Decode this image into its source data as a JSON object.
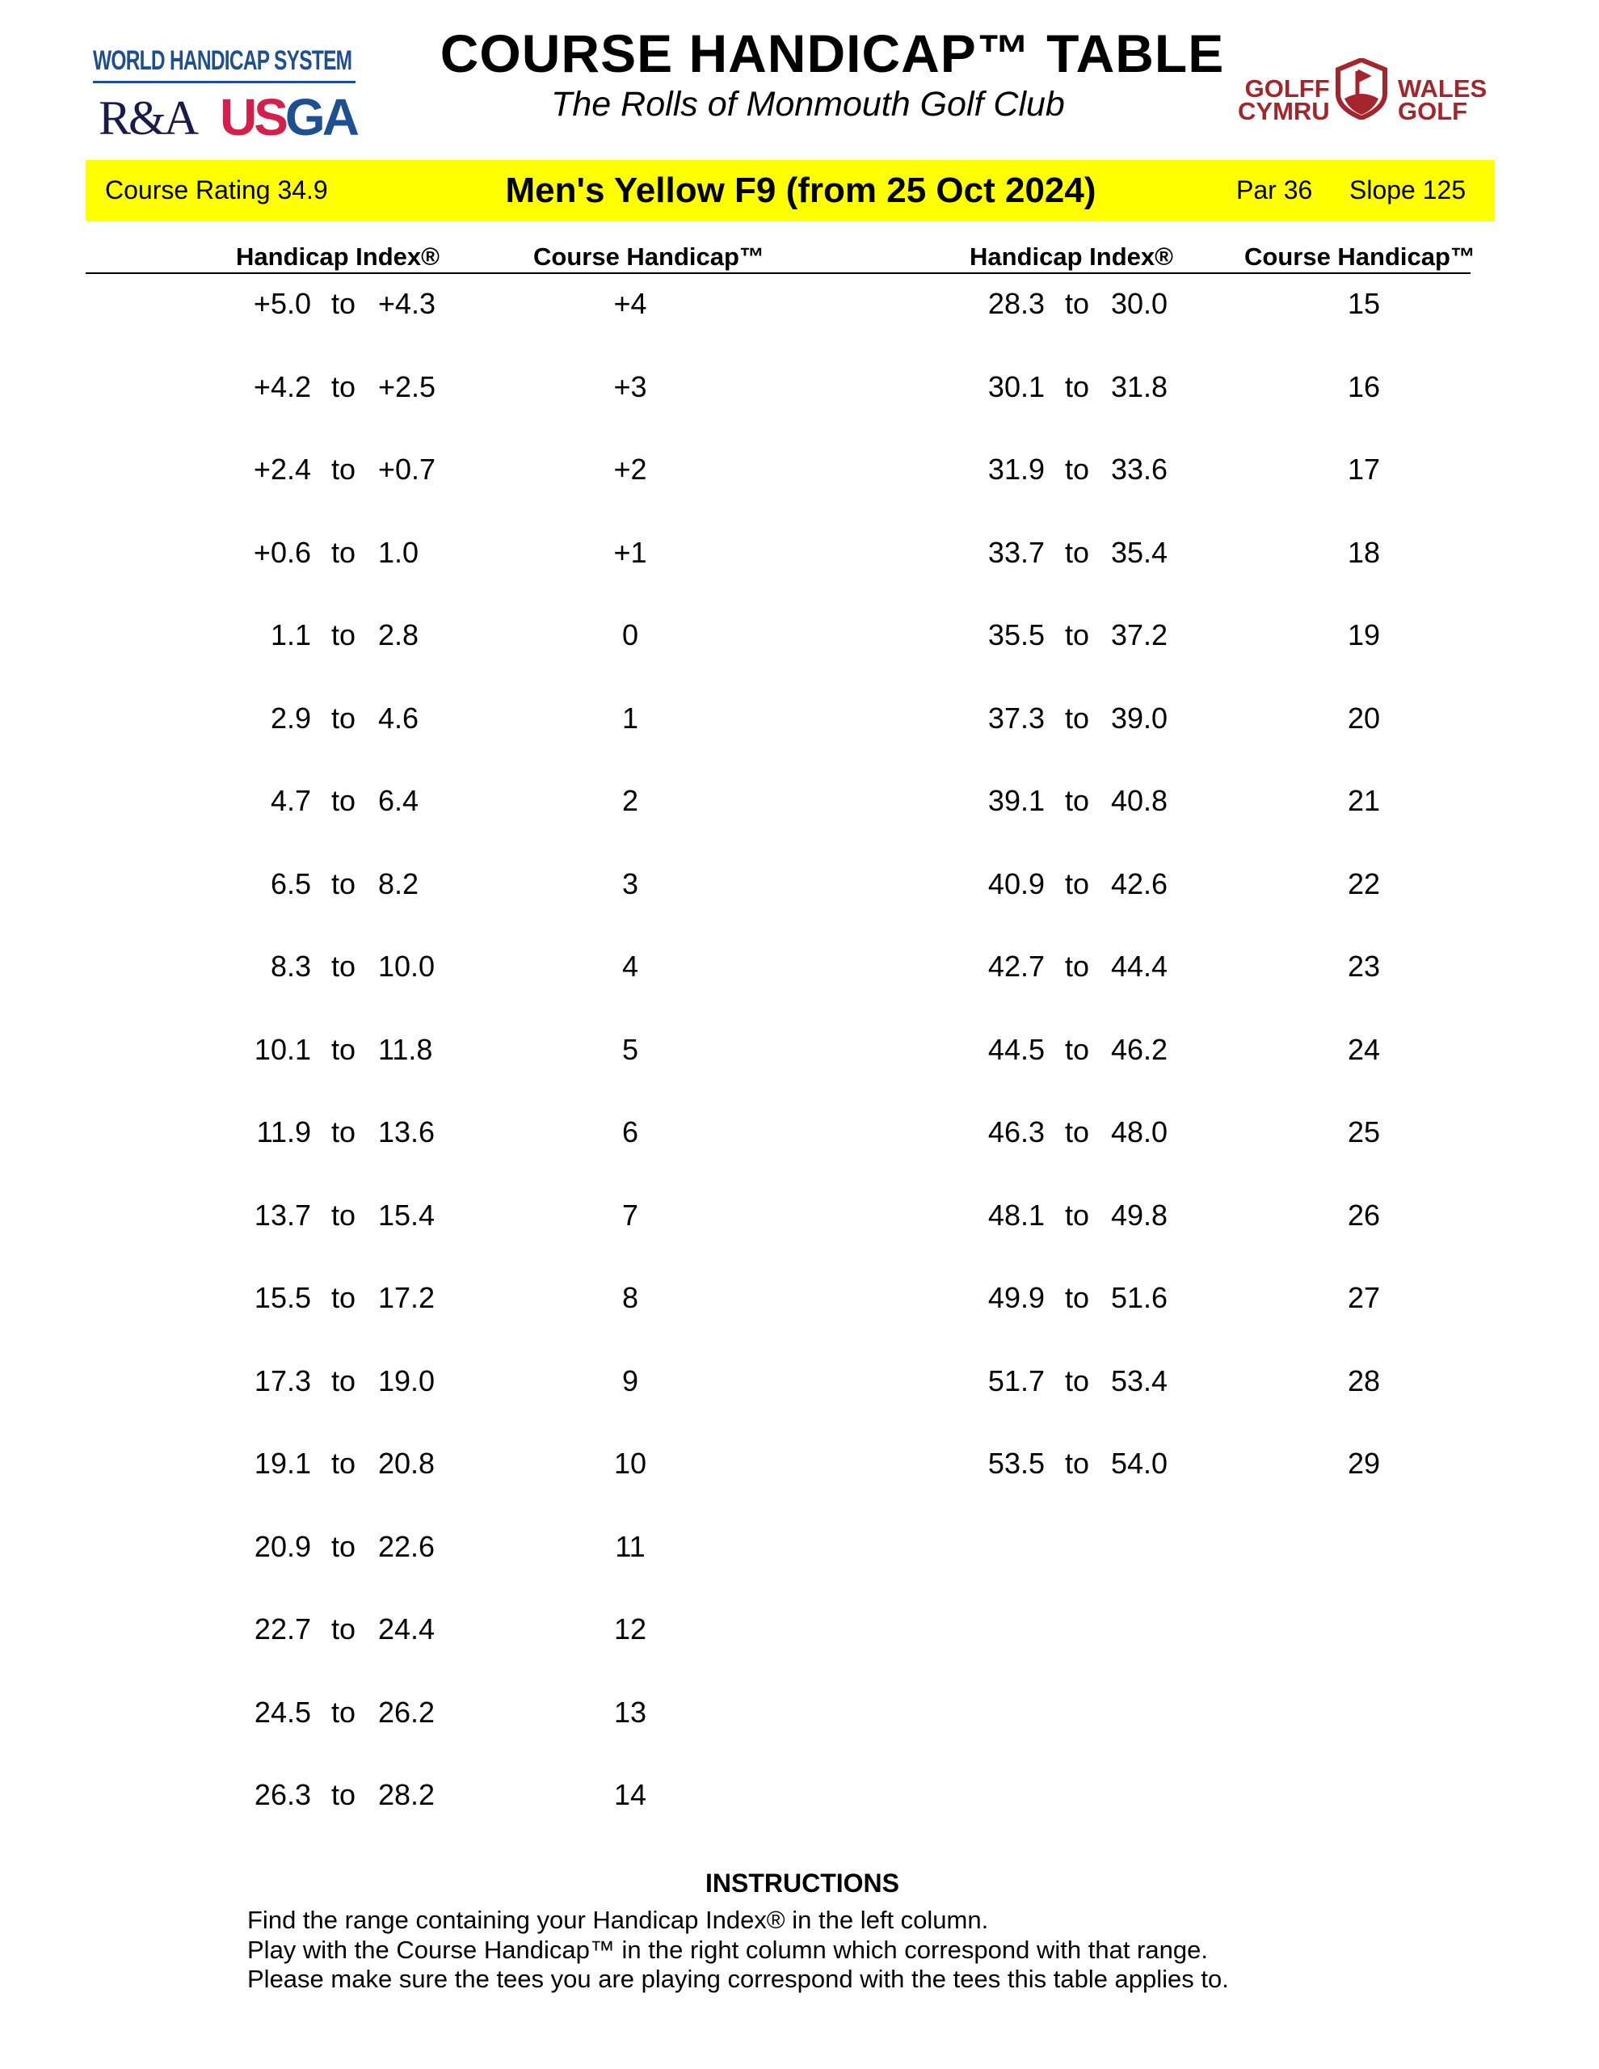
{
  "header": {
    "title": "COURSE HANDICAP™ TABLE",
    "subtitle": "The Rolls of Monmouth Golf Club",
    "logos": {
      "whs": "WORLD HANDICAP SYSTEM",
      "ra": "R&A",
      "usga_us": "US",
      "usga_ga": "GA",
      "wales_left": [
        "GOLFF",
        "CYMRU"
      ],
      "wales_right": [
        "WALES",
        "GOLF"
      ]
    }
  },
  "band": {
    "course_rating": "Course Rating 34.9",
    "title": "Men's Yellow F9 (from 25 Oct 2024)",
    "par": "Par 36",
    "slope": "Slope 125",
    "color": "#ffff00"
  },
  "columns": {
    "index": "Handicap Index®",
    "course": "Course Handicap™",
    "to": "to"
  },
  "left_rows": [
    [
      "+5.0",
      "+4.3",
      "+4"
    ],
    [
      "+4.2",
      "+2.5",
      "+3"
    ],
    [
      "+2.4",
      "+0.7",
      "+2"
    ],
    [
      "+0.6",
      "1.0",
      "+1"
    ],
    [
      "1.1",
      "2.8",
      "0"
    ],
    [
      "2.9",
      "4.6",
      "1"
    ],
    [
      "4.7",
      "6.4",
      "2"
    ],
    [
      "6.5",
      "8.2",
      "3"
    ],
    [
      "8.3",
      "10.0",
      "4"
    ],
    [
      "10.1",
      "11.8",
      "5"
    ],
    [
      "11.9",
      "13.6",
      "6"
    ],
    [
      "13.7",
      "15.4",
      "7"
    ],
    [
      "15.5",
      "17.2",
      "8"
    ],
    [
      "17.3",
      "19.0",
      "9"
    ],
    [
      "19.1",
      "20.8",
      "10"
    ],
    [
      "20.9",
      "22.6",
      "11"
    ],
    [
      "22.7",
      "24.4",
      "12"
    ],
    [
      "24.5",
      "26.2",
      "13"
    ],
    [
      "26.3",
      "28.2",
      "14"
    ]
  ],
  "right_rows": [
    [
      "28.3",
      "30.0",
      "15"
    ],
    [
      "30.1",
      "31.8",
      "16"
    ],
    [
      "31.9",
      "33.6",
      "17"
    ],
    [
      "33.7",
      "35.4",
      "18"
    ],
    [
      "35.5",
      "37.2",
      "19"
    ],
    [
      "37.3",
      "39.0",
      "20"
    ],
    [
      "39.1",
      "40.8",
      "21"
    ],
    [
      "40.9",
      "42.6",
      "22"
    ],
    [
      "42.7",
      "44.4",
      "23"
    ],
    [
      "44.5",
      "46.2",
      "24"
    ],
    [
      "46.3",
      "48.0",
      "25"
    ],
    [
      "48.1",
      "49.8",
      "26"
    ],
    [
      "49.9",
      "51.6",
      "27"
    ],
    [
      "51.7",
      "53.4",
      "28"
    ],
    [
      "53.5",
      "54.0",
      "29"
    ]
  ],
  "instructions": {
    "heading": "INSTRUCTIONS",
    "lines": [
      "Find the range containing your Handicap Index® in the left column.",
      "Play with the Course Handicap™ in the right column which correspond with that range.",
      "Please make sure the tees you are playing correspond with the tees this table applies to."
    ]
  }
}
